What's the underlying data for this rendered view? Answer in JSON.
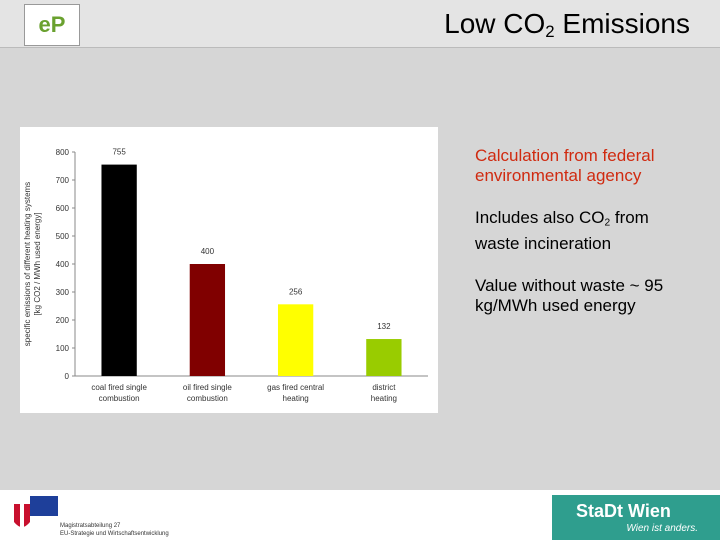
{
  "header": {
    "title_parts": [
      "Low CO",
      "2",
      " Emissions"
    ]
  },
  "chart_data": {
    "type": "bar",
    "ylabel": [
      "specific emissions of different heating systems",
      "[kg CO2 / MWh used energy]"
    ],
    "categories": [
      "coal fired single combustion",
      "oil fired single combustion",
      "gas fired central heating",
      "district heating"
    ],
    "values": [
      755,
      400,
      256,
      132
    ],
    "colors": [
      "#000000",
      "#800000",
      "#ffff00",
      "#99cc00"
    ],
    "ylim": [
      0,
      800
    ],
    "yticks": [
      0,
      100,
      200,
      300,
      400,
      500,
      600,
      700,
      800
    ],
    "grid": false
  },
  "notes": [
    {
      "parts": [
        "Calculation from federal environmental agency"
      ]
    },
    {
      "parts": [
        "Includes also CO",
        "2",
        " from waste incineration"
      ]
    },
    {
      "parts": [
        "Value without waste ~ 95 kg/MWh used energy"
      ]
    }
  ],
  "footer": {
    "dept": "Magistratsabteilung 27",
    "dept_sub": "EU-Strategie und Wirtschaftsentwicklung",
    "city": "StaDt Wien",
    "slogan": "Wien ist anders."
  }
}
